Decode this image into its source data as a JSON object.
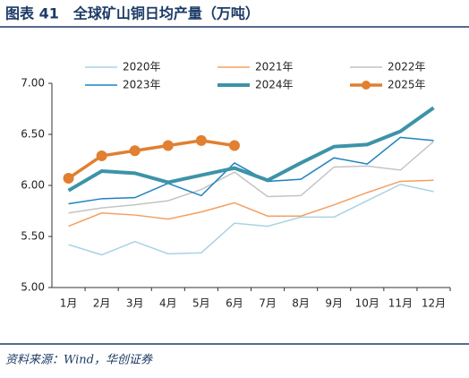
{
  "title": "图表 41　全球矿山铜日均产量（万吨）",
  "source": "资料来源：Wind，华创证券",
  "chart_data": {
    "type": "line",
    "categories": [
      "1月",
      "2月",
      "3月",
      "4月",
      "5月",
      "6月",
      "7月",
      "8月",
      "9月",
      "10月",
      "11月",
      "12月"
    ],
    "ylim": [
      5,
      7
    ],
    "yticks": [
      {
        "value": 5,
        "label": "5.00"
      },
      {
        "value": 5.5,
        "label": "5.50"
      },
      {
        "value": 6,
        "label": "6.00"
      },
      {
        "value": 6.5,
        "label": "6.50"
      },
      {
        "value": 7,
        "label": "7.00"
      }
    ],
    "grid": false,
    "series": [
      {
        "name": "2020年",
        "color": "#a9d3e4",
        "width": 1.5,
        "values": [
          5.42,
          5.32,
          5.45,
          5.33,
          5.34,
          5.63,
          5.6,
          5.69,
          5.69,
          5.85,
          6.01,
          5.94
        ]
      },
      {
        "name": "2021年",
        "color": "#f2a064",
        "width": 1.5,
        "values": [
          5.6,
          5.73,
          5.71,
          5.67,
          5.74,
          5.83,
          5.7,
          5.7,
          5.81,
          5.93,
          6.04,
          6.05
        ]
      },
      {
        "name": "2022年",
        "color": "#c4c4c4",
        "width": 1.5,
        "values": [
          5.73,
          5.78,
          5.81,
          5.85,
          5.96,
          6.13,
          5.89,
          5.9,
          6.18,
          6.19,
          6.15,
          6.43
        ]
      },
      {
        "name": "2023年",
        "color": "#1f82bf",
        "width": 1.5,
        "values": [
          5.82,
          5.87,
          5.88,
          6.02,
          5.9,
          6.22,
          6.04,
          6.06,
          6.27,
          6.21,
          6.47,
          6.44
        ]
      },
      {
        "name": "2024年",
        "color": "#3d93a8",
        "width": 4,
        "values": [
          5.95,
          6.14,
          6.12,
          6.03,
          6.1,
          6.17,
          6.05,
          6.22,
          6.38,
          6.4,
          6.53,
          6.76
        ]
      },
      {
        "name": "2025年",
        "color": "#e08030",
        "width": 3.5,
        "marker": true,
        "values": [
          6.07,
          6.29,
          6.34,
          6.39,
          6.44,
          6.39,
          null,
          null,
          null,
          null,
          null,
          null
        ]
      }
    ]
  }
}
